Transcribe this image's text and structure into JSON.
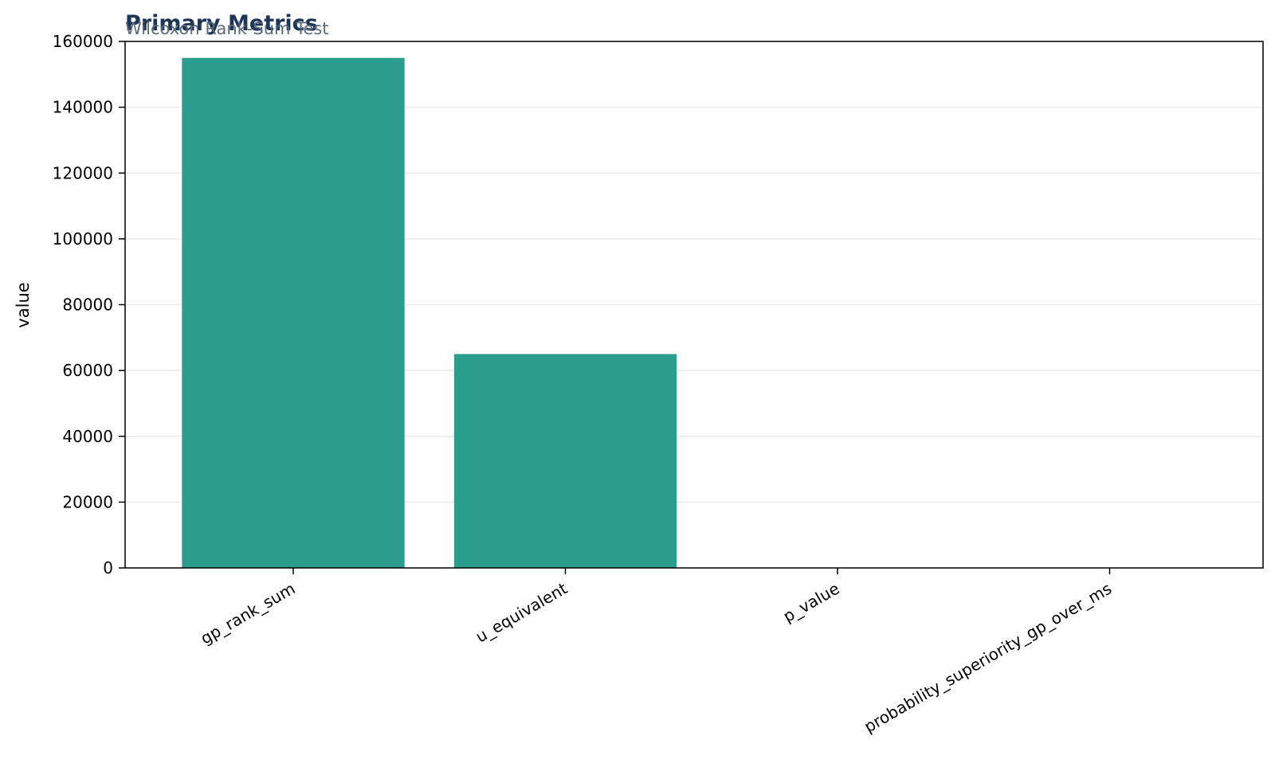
{
  "chart_data": {
    "type": "bar",
    "title": "Primary Metrics",
    "subtitle": "Wilcoxon Rank-Sum Test",
    "xlabel": "",
    "ylabel": "value",
    "categories": [
      "gp_rank_sum",
      "u_equivalent",
      "p_value",
      "probability_superiority_gp_over_ms"
    ],
    "values": [
      155000,
      65000,
      0.0,
      0.5
    ],
    "ylim": [
      0,
      160000
    ],
    "yticks": [
      "0",
      "20000",
      "40000",
      "60000",
      "80000",
      "100000",
      "120000",
      "140000",
      "160000"
    ],
    "grid": "y",
    "colors": {
      "bar": "#2a9d8f",
      "title": "#1d3557",
      "subtitle": "#5c6b7a",
      "grid": "#ebebeb",
      "axis": "#000000"
    }
  }
}
